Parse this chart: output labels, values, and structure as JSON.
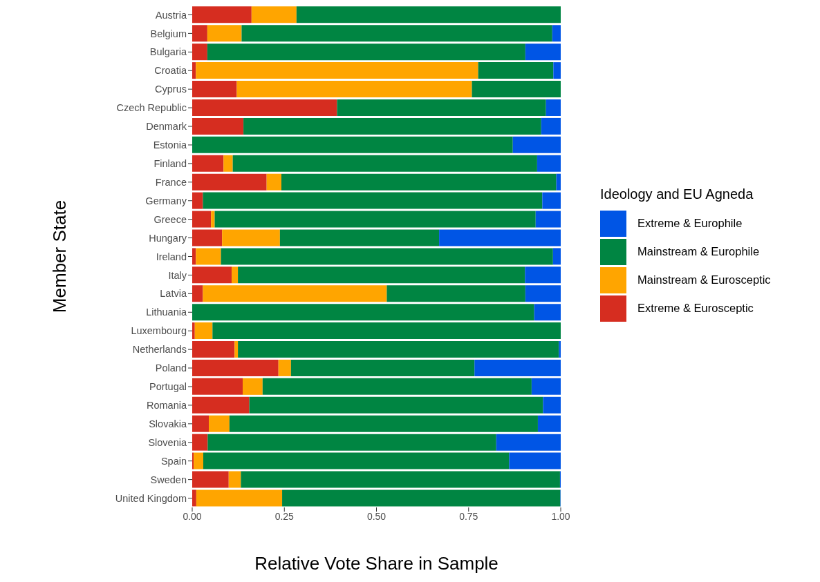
{
  "chart_data": {
    "type": "bar",
    "orientation": "horizontal",
    "stacked": true,
    "xlabel": "Relative Vote Share in Sample",
    "ylabel": "Member State",
    "legend_title": "Ideology and EU Agneda",
    "legend": "right",
    "grid": false,
    "categories": [
      "Austria",
      "Belgium",
      "Bulgaria",
      "Croatia",
      "Cyprus",
      "Czech Republic",
      "Denmark",
      "Estonia",
      "Finland",
      "France",
      "Germany",
      "Greece",
      "Hungary",
      "Ireland",
      "Italy",
      "Latvia",
      "Lithuania",
      "Luxembourg",
      "Netherlands",
      "Poland",
      "Portugal",
      "Romania",
      "Slovakia",
      "Slovenia",
      "Spain",
      "Sweden",
      "United Kingdom"
    ],
    "xlim": [
      0,
      1
    ],
    "xticks": [
      {
        "value": 0,
        "label": "0.00"
      },
      {
        "value": 0.25,
        "label": "0.25"
      },
      {
        "value": 0.5,
        "label": "0.50"
      },
      {
        "value": 0.75,
        "label": "0.75"
      },
      {
        "value": 1,
        "label": "1.00"
      }
    ],
    "series": [
      {
        "name": "Extreme & Eurosceptic",
        "color": "#d62d20",
        "values": [
          0.161,
          0.041,
          0.041,
          0.01,
          0.121,
          0.393,
          0.139,
          0,
          0.085,
          0.202,
          0.029,
          0.051,
          0.081,
          0.01,
          0.107,
          0.029,
          0,
          0.007,
          0.115,
          0.234,
          0.137,
          0.155,
          0.045,
          0.042,
          0.004,
          0.099,
          0.011
        ]
      },
      {
        "name": "Mainstream & Eurosceptic",
        "color": "#ffa500",
        "values": [
          0.122,
          0.093,
          0,
          0.766,
          0.638,
          0,
          0,
          0,
          0.025,
          0.04,
          0,
          0.01,
          0.157,
          0.068,
          0.017,
          0.499,
          0,
          0.048,
          0.009,
          0.034,
          0.054,
          0,
          0.056,
          0,
          0.026,
          0.033,
          0.233
        ]
      },
      {
        "name": "Mainstream & Europhile",
        "color": "#008542",
        "values": [
          0.717,
          0.843,
          0.863,
          0.204,
          0.241,
          0.567,
          0.808,
          0.87,
          0.826,
          0.746,
          0.921,
          0.871,
          0.432,
          0.901,
          0.779,
          0.376,
          0.928,
          0.945,
          0.871,
          0.498,
          0.73,
          0.797,
          0.837,
          0.783,
          0.83,
          0.866,
          0.755
        ]
      },
      {
        "name": "Extreme & Europhile",
        "color": "#0055e5",
        "values": [
          0,
          0.023,
          0.096,
          0.02,
          0,
          0.04,
          0.053,
          0.13,
          0.064,
          0.012,
          0.05,
          0.068,
          0.33,
          0.021,
          0.097,
          0.096,
          0.072,
          0,
          0.005,
          0.234,
          0.079,
          0.048,
          0.062,
          0.175,
          0.14,
          0.002,
          0.001
        ]
      }
    ]
  }
}
